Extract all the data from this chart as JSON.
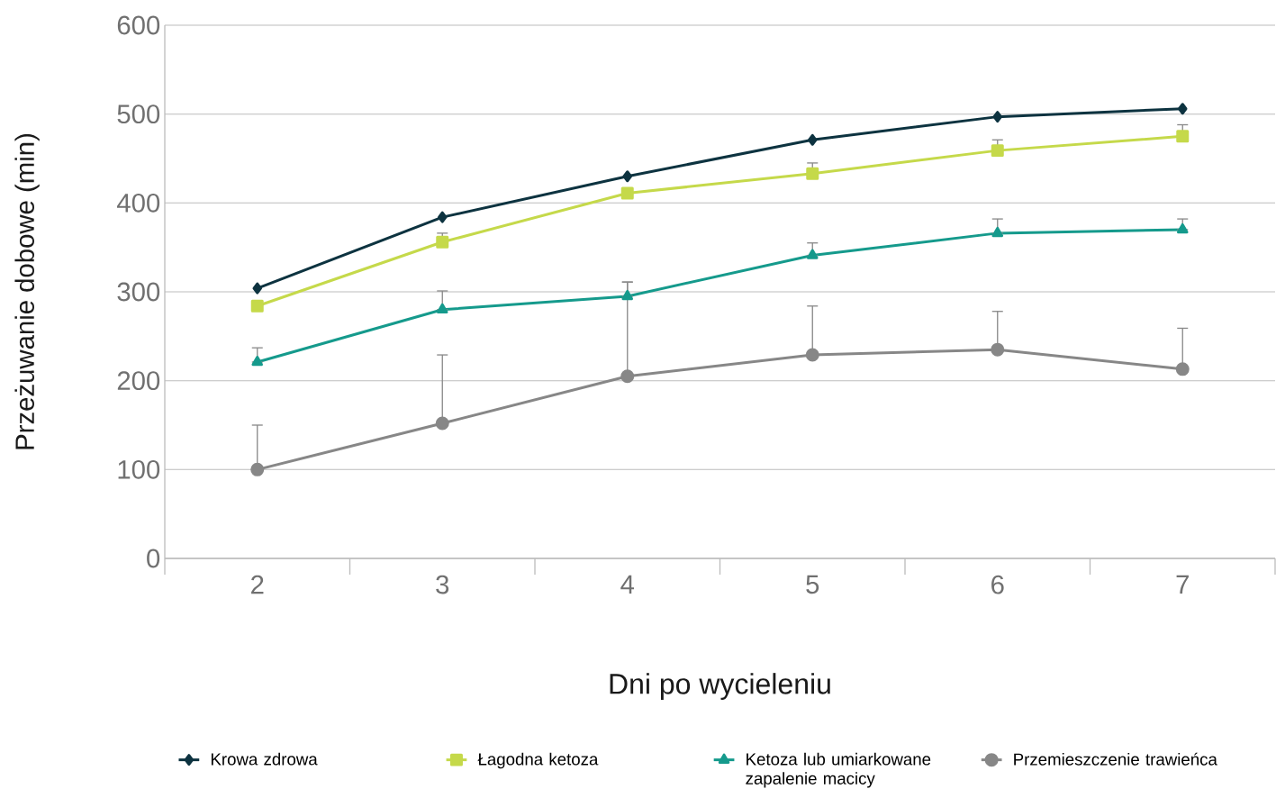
{
  "chart_data": {
    "type": "line",
    "xlabel": "Dni po wycieleniu",
    "ylabel": "Przeżuwanie dobowe (min)",
    "categories": [
      "2",
      "3",
      "4",
      "5",
      "6",
      "7"
    ],
    "ylim": [
      0,
      600
    ],
    "yticks": [
      0,
      100,
      200,
      300,
      400,
      500,
      600
    ],
    "grid": "y",
    "legend": "bottom",
    "series": [
      {
        "name": "Krowa zdrowa",
        "color": "#0d3340",
        "marker": "diamond",
        "values": [
          304,
          384,
          430,
          471,
          497,
          506
        ]
      },
      {
        "name": "Łagodna ketoza",
        "color": "#c5d94a",
        "marker": "square",
        "values": [
          284,
          356,
          411,
          433,
          459,
          475
        ],
        "errors": [
          null,
          [
            356,
            366
          ],
          null,
          [
            433,
            445
          ],
          [
            459,
            471
          ],
          [
            475,
            488
          ]
        ]
      },
      {
        "name": "Ketoza lub umiarkowane zapalenie macicy",
        "color": "#159a8c",
        "marker": "triangle",
        "values": [
          221,
          280,
          295,
          341,
          366,
          370
        ],
        "errors": [
          [
            221,
            237
          ],
          [
            280,
            301
          ],
          [
            295,
            311
          ],
          [
            341,
            355
          ],
          [
            366,
            382
          ],
          [
            370,
            382
          ]
        ]
      },
      {
        "name": "Przemieszczenie trawieńca",
        "color": "#878787",
        "marker": "circle",
        "values": [
          100,
          152,
          205,
          229,
          235,
          213
        ],
        "errors": [
          [
            100,
            150
          ],
          [
            152,
            229
          ],
          [
            205,
            311
          ],
          [
            229,
            284
          ],
          [
            235,
            278
          ],
          [
            213,
            259
          ]
        ]
      }
    ]
  }
}
